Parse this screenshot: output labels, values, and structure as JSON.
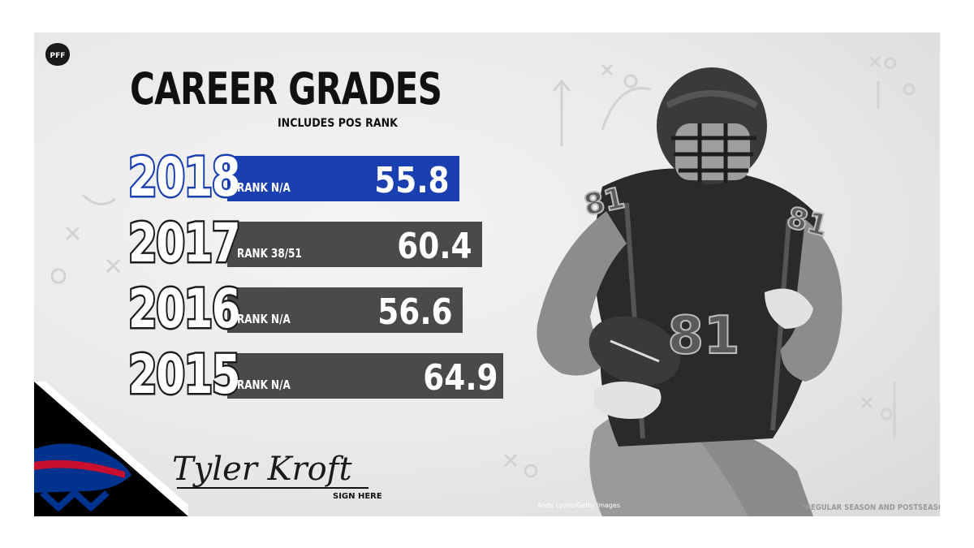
{
  "header": {
    "title": "CAREER GRADES",
    "subtitle": "INCLUDES POS RANK",
    "logo_text": "PFF"
  },
  "grades": [
    {
      "year": "2018",
      "rank": "RANK N/A",
      "grade": "55.8",
      "current": true
    },
    {
      "year": "2017",
      "rank": "RANK 38/51",
      "grade": "60.4",
      "current": false
    },
    {
      "year": "2016",
      "rank": "RANK N/A",
      "grade": "56.6",
      "current": false
    },
    {
      "year": "2015",
      "rank": "RANK N/A",
      "grade": "64.9",
      "current": false
    }
  ],
  "signature": {
    "name": "Tyler Kroft",
    "label": "SIGN HERE"
  },
  "photo": {
    "credit": "Andy Lyons/Getty Images",
    "jersey_number": "81"
  },
  "footnote": "*REGULAR SEASON AND POSTSEASON",
  "colors": {
    "accent_blue": "#1a3fb0",
    "bar_gray": "#4a4a4a",
    "team_red": "#c8102e",
    "team_navy": "#00338d"
  }
}
